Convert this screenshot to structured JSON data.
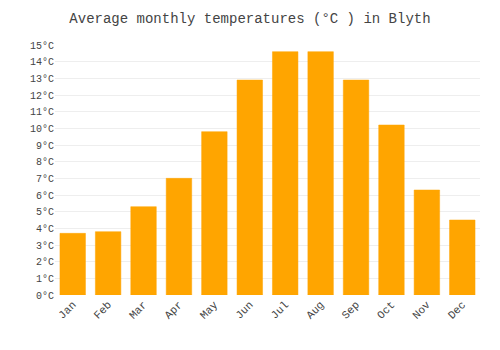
{
  "chart_data": {
    "type": "bar",
    "title": "Average monthly temperatures (°C ) in Blyth",
    "categories": [
      "Jan",
      "Feb",
      "Mar",
      "Apr",
      "May",
      "Jun",
      "Jul",
      "Aug",
      "Sep",
      "Oct",
      "Nov",
      "Dec"
    ],
    "values": [
      3.7,
      3.8,
      5.3,
      7.0,
      9.8,
      12.9,
      14.6,
      14.6,
      12.9,
      10.2,
      6.3,
      4.5
    ],
    "color": "#FFA500",
    "ylim": [
      0,
      15
    ],
    "yticks": [
      {
        "value": 0,
        "label": "0°C"
      },
      {
        "value": 1,
        "label": "1°C"
      },
      {
        "value": 2,
        "label": "2°C"
      },
      {
        "value": 3,
        "label": "3°C"
      },
      {
        "value": 4,
        "label": "4°C"
      },
      {
        "value": 5,
        "label": "5°C"
      },
      {
        "value": 6,
        "label": "6°C"
      },
      {
        "value": 7,
        "label": "7°C"
      },
      {
        "value": 8,
        "label": "8°C"
      },
      {
        "value": 9,
        "label": "9°C"
      },
      {
        "value": 10,
        "label": "10°C"
      },
      {
        "value": 11,
        "label": "11°C"
      },
      {
        "value": 12,
        "label": "12°C"
      },
      {
        "value": 13,
        "label": "13°C"
      },
      {
        "value": 14,
        "label": "14°C"
      },
      {
        "value": 15,
        "label": "15°C"
      }
    ],
    "grid": true
  }
}
